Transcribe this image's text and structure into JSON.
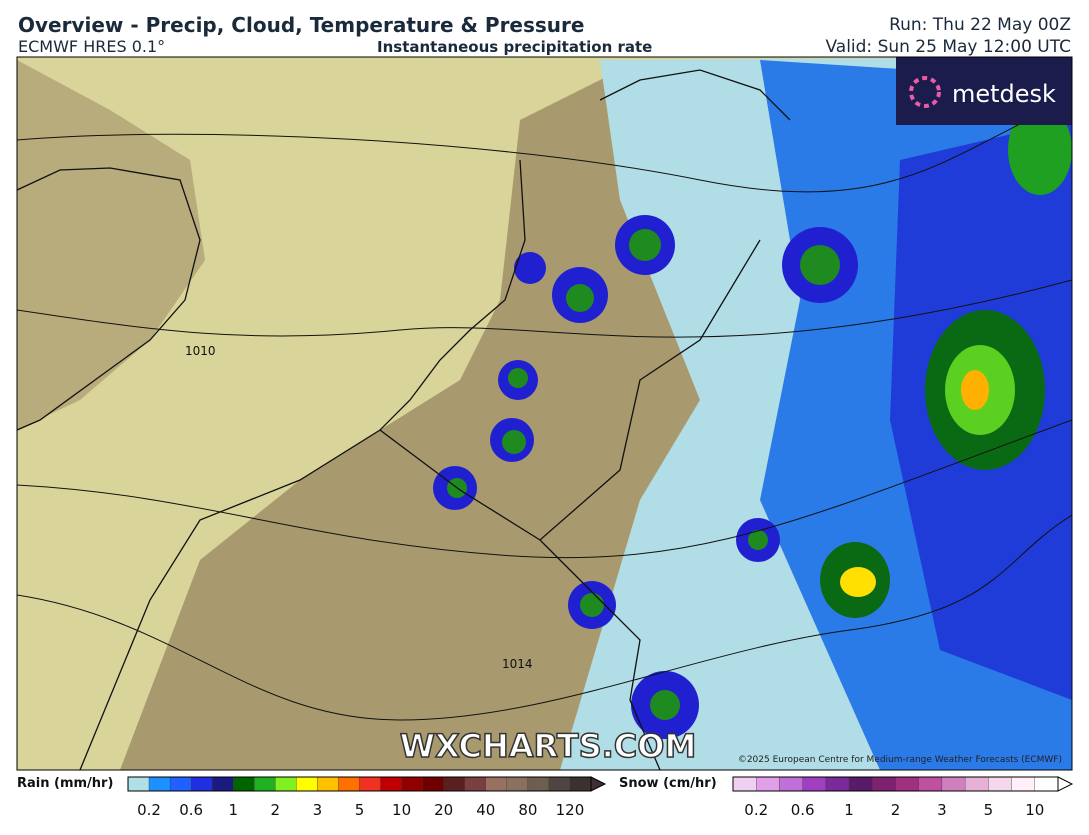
{
  "header": {
    "title": "Overview - Precip, Cloud, Temperature & Pressure",
    "model": "ECMWF HRES 0.1°",
    "subtitle": "Instantaneous precipitation rate",
    "run": "Run: Thu 22 May 00Z",
    "valid": "Valid: Sun 25 May 12:00 UTC"
  },
  "map": {
    "isobar_labels": [
      "1010",
      "1014"
    ],
    "watermark": "WXCHARTS.COM",
    "copyright": "©2025 European Centre for Medium-range Weather Forecasts (ECMWF)",
    "logo": "metdesk"
  },
  "legend": {
    "rain": {
      "label": "Rain (mm/hr)",
      "ticks": [
        "0.2",
        "0.6",
        "1",
        "2",
        "3",
        "5",
        "10",
        "20",
        "40",
        "80",
        "120"
      ]
    },
    "snow": {
      "label": "Snow (cm/hr)",
      "ticks": [
        "0.2",
        "0.6",
        "1",
        "2",
        "3",
        "5",
        "10"
      ]
    }
  }
}
